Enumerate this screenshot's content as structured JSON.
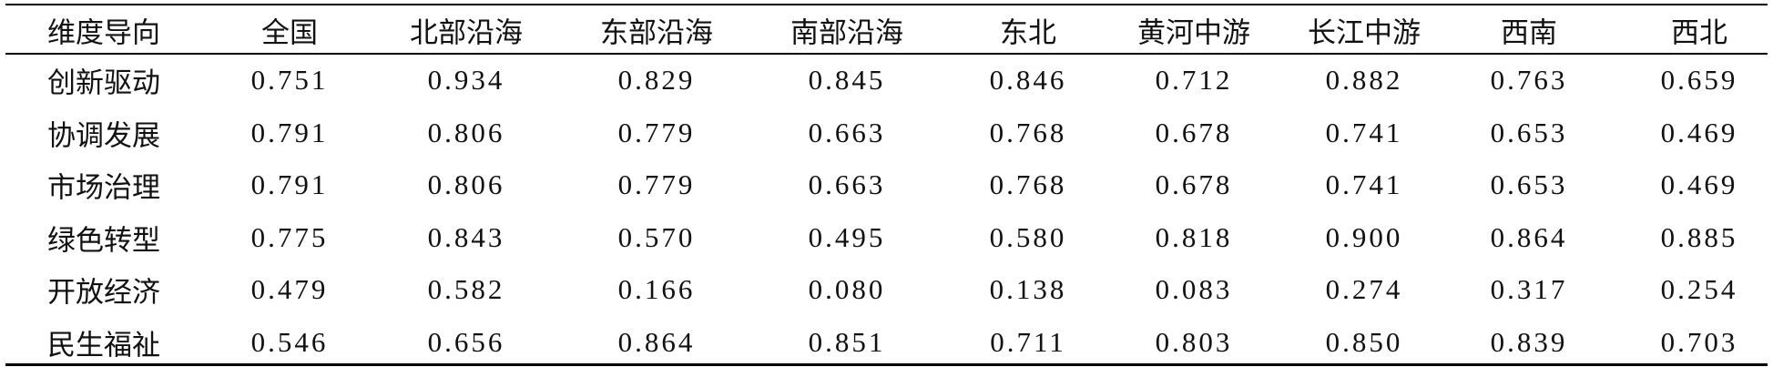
{
  "table": {
    "header": [
      "维度导向",
      "全国",
      "北部沿海",
      "东部沿海",
      "南部沿海",
      "东北",
      "黄河中游",
      "长江中游",
      "西南",
      "西北"
    ],
    "rows": [
      [
        "创新驱动",
        "0.751",
        "0.934",
        "0.829",
        "0.845",
        "0.846",
        "0.712",
        "0.882",
        "0.763",
        "0.659"
      ],
      [
        "协调发展",
        "0.791",
        "0.806",
        "0.779",
        "0.663",
        "0.768",
        "0.678",
        "0.741",
        "0.653",
        "0.469"
      ],
      [
        "市场治理",
        "0.791",
        "0.806",
        "0.779",
        "0.663",
        "0.768",
        "0.678",
        "0.741",
        "0.653",
        "0.469"
      ],
      [
        "绿色转型",
        "0.775",
        "0.843",
        "0.570",
        "0.495",
        "0.580",
        "0.818",
        "0.900",
        "0.864",
        "0.885"
      ],
      [
        "开放经济",
        "0.479",
        "0.582",
        "0.166",
        "0.080",
        "0.138",
        "0.083",
        "0.274",
        "0.317",
        "0.254"
      ],
      [
        "民生福祉",
        "0.546",
        "0.656",
        "0.864",
        "0.851",
        "0.711",
        "0.803",
        "0.850",
        "0.839",
        "0.703"
      ]
    ]
  }
}
